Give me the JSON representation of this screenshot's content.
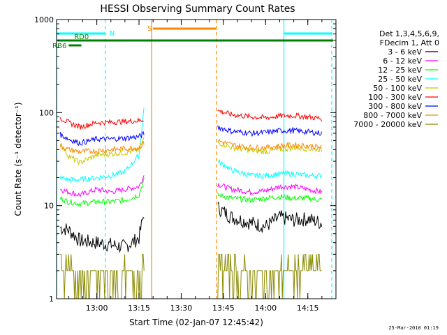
{
  "chart_data": {
    "type": "line",
    "title": "HESSI Observing Summary Count Rates",
    "xlabel": "Start Time (02-Jan-07 12:45:42)",
    "ylabel": "Count Rate (s⁻¹ detector⁻¹)",
    "yscale": "log",
    "ylim": [
      1,
      1000
    ],
    "xlim": [
      "12:45:42",
      "14:25:00"
    ],
    "x_ticks": [
      "13:00",
      "13:15",
      "13:30",
      "13:45",
      "14:00",
      "14:15"
    ],
    "y_ticks": [
      "1",
      "10",
      "100",
      "1000"
    ],
    "legend": {
      "placement": "right",
      "header": [
        "Det 1,3,4,5,6,9,",
        "FDecim 1, Att 0"
      ],
      "entries": [
        {
          "label": "3 - 6 keV",
          "color": "#000000"
        },
        {
          "label": "6 - 12 keV",
          "color": "#ff00ff"
        },
        {
          "label": "12 - 25 keV",
          "color": "#00ff00"
        },
        {
          "label": "25 - 50 keV",
          "color": "#00ffff"
        },
        {
          "label": "50 - 100 keV",
          "color": "#c8c800"
        },
        {
          "label": "100 - 300 keV",
          "color": "#ff0000"
        },
        {
          "label": "300 - 800 keV",
          "color": "#0000ff"
        },
        {
          "label": "800 - 7000 keV",
          "color": "#ff8800"
        },
        {
          "label": "7000 - 20000 keV",
          "color": "#8b8b00"
        }
      ]
    },
    "annotations": [
      {
        "label": "N",
        "color": "#00ffff",
        "from": "12:45:42",
        "to": "13:03:00"
      },
      {
        "label": "S",
        "color": "#ff8800",
        "from": "13:20:00",
        "to": "13:42:30"
      },
      {
        "label": "RD0",
        "color": "#008000",
        "from": "12:46:00",
        "to": "14:24:00"
      },
      {
        "label": "RB6",
        "color": "#008000",
        "from": "12:50:00",
        "to": "12:54:30"
      }
    ],
    "vertical_markers": [
      {
        "time": "12:45:42",
        "color": "#00ffff",
        "style": "solid"
      },
      {
        "time": "13:03:00",
        "color": "#00ffff",
        "style": "dashed"
      },
      {
        "time": "13:19:30",
        "color": "#ff8800",
        "style": "solid"
      },
      {
        "time": "13:42:30",
        "color": "#ff8800",
        "style": "dashed"
      },
      {
        "time": "14:06:30",
        "color": "#00ffff",
        "style": "solid"
      },
      {
        "time": "14:23:30",
        "color": "#00ffff",
        "style": "dashed"
      }
    ],
    "segments": [
      {
        "from": "12:47:00",
        "to": "13:17:40"
      },
      {
        "from": "13:43:00",
        "to": "14:23:00"
      }
    ],
    "series": [
      {
        "name": "3 - 6 keV",
        "color": "#000000",
        "seg1": {
          "x": [
            "12:47",
            "12:50",
            "12:54",
            "13:00",
            "13:05",
            "13:10",
            "13:15",
            "13:17"
          ],
          "y": [
            5.8,
            5.5,
            4.2,
            4.0,
            3.8,
            3.6,
            4.5,
            9.0
          ]
        },
        "seg2": {
          "x": [
            "13:43",
            "13:48",
            "13:55",
            "14:00",
            "14:05",
            "14:10",
            "14:15",
            "14:20"
          ],
          "y": [
            9.5,
            7.5,
            6.5,
            6.0,
            7.5,
            7.0,
            7.2,
            6.5
          ]
        }
      },
      {
        "name": "6 - 12 keV",
        "color": "#ff00ff",
        "seg1": {
          "x": [
            "12:47",
            "12:50",
            "12:54",
            "13:00",
            "13:05",
            "13:10",
            "13:15",
            "13:17"
          ],
          "y": [
            15,
            14,
            13,
            15,
            14,
            15,
            16,
            22
          ]
        },
        "seg2": {
          "x": [
            "13:43",
            "13:48",
            "13:55",
            "14:00",
            "14:05",
            "14:10",
            "14:15",
            "14:20"
          ],
          "y": [
            17,
            15,
            14,
            14.5,
            16,
            16,
            15,
            14
          ]
        }
      },
      {
        "name": "12 - 25 keV",
        "color": "#00ff00",
        "seg1": {
          "x": [
            "12:47",
            "12:50",
            "12:54",
            "13:00",
            "13:05",
            "13:10",
            "13:15",
            "13:17"
          ],
          "y": [
            12,
            11,
            10.5,
            11,
            11,
            11.5,
            13,
            20
          ]
        },
        "seg2": {
          "x": [
            "13:43",
            "13:48",
            "13:55",
            "14:00",
            "14:05",
            "14:10",
            "14:15",
            "14:20"
          ],
          "y": [
            13,
            12,
            11.5,
            12,
            12.5,
            12,
            12,
            11.5
          ]
        }
      },
      {
        "name": "25 - 50 keV",
        "color": "#00ffff",
        "seg1": {
          "x": [
            "12:47",
            "12:50",
            "12:54",
            "13:00",
            "13:05",
            "13:10",
            "13:15",
            "13:17"
          ],
          "y": [
            20,
            19,
            19,
            20,
            21,
            23,
            35,
            130
          ]
        },
        "seg2": {
          "x": [
            "13:43",
            "13:48",
            "13:55",
            "14:00",
            "14:05",
            "14:10",
            "14:15",
            "14:20"
          ],
          "y": [
            30,
            24,
            21,
            21,
            22,
            22,
            21,
            21
          ]
        }
      },
      {
        "name": "50 - 100 keV",
        "color": "#c8c800",
        "seg1": {
          "x": [
            "12:47",
            "12:50",
            "12:54",
            "13:00",
            "13:05",
            "13:10",
            "13:15",
            "13:17"
          ],
          "y": [
            47,
            34,
            29,
            35,
            36,
            37,
            40,
            55
          ]
        },
        "seg2": {
          "x": [
            "13:43",
            "13:48",
            "13:55",
            "14:00",
            "14:05",
            "14:10",
            "14:15",
            "14:20"
          ],
          "y": [
            48,
            42,
            39,
            38,
            40,
            42,
            41,
            40
          ]
        }
      },
      {
        "name": "100 - 300 keV",
        "color": "#ff0000",
        "seg1": {
          "x": [
            "12:47",
            "12:50",
            "12:54",
            "13:00",
            "13:05",
            "13:10",
            "13:15",
            "13:17"
          ],
          "y": [
            88,
            78,
            70,
            78,
            79,
            80,
            82,
            85
          ]
        },
        "seg2": {
          "x": [
            "13:43",
            "13:48",
            "13:55",
            "14:00",
            "14:05",
            "14:10",
            "14:15",
            "14:20"
          ],
          "y": [
            105,
            95,
            90,
            88,
            92,
            93,
            90,
            86
          ]
        }
      },
      {
        "name": "300 - 800 keV",
        "color": "#0000ff",
        "seg1": {
          "x": [
            "12:47",
            "12:50",
            "12:54",
            "13:00",
            "13:05",
            "13:10",
            "13:15",
            "13:17"
          ],
          "y": [
            58,
            52,
            47,
            52,
            52,
            53,
            55,
            60
          ]
        },
        "seg2": {
          "x": [
            "13:43",
            "13:48",
            "13:55",
            "14:00",
            "14:05",
            "14:10",
            "14:15",
            "14:20"
          ],
          "y": [
            70,
            63,
            60,
            61,
            64,
            64,
            62,
            60
          ]
        }
      },
      {
        "name": "800 - 7000 keV",
        "color": "#ff8800",
        "seg1": {
          "x": [
            "12:47",
            "12:50",
            "12:54",
            "13:00",
            "13:05",
            "13:10",
            "13:15",
            "13:17"
          ],
          "y": [
            44,
            40,
            38,
            39,
            40,
            41,
            42,
            48
          ]
        },
        "seg2": {
          "x": [
            "13:43",
            "13:48",
            "13:55",
            "14:00",
            "14:05",
            "14:10",
            "14:15",
            "14:20"
          ],
          "y": [
            50,
            45,
            42,
            42,
            44,
            45,
            44,
            42
          ]
        }
      },
      {
        "name": "7000 - 20000 keV",
        "color": "#8b8b00",
        "seg1": {
          "x": [
            "12:47",
            "12:50",
            "12:54",
            "13:00",
            "13:05",
            "13:10",
            "13:15",
            "13:17"
          ],
          "y": [
            2.2,
            2.1,
            1.6,
            1.7,
            1.6,
            1.7,
            1.8,
            2.0
          ]
        },
        "seg2": {
          "x": [
            "13:43",
            "13:48",
            "13:55",
            "14:00",
            "14:05",
            "14:10",
            "14:15",
            "14:20"
          ],
          "y": [
            2.1,
            1.9,
            1.7,
            1.6,
            1.8,
            2.0,
            2.1,
            2.2
          ]
        }
      }
    ]
  },
  "footer_stamp": "25-Mar-2010 01:19"
}
